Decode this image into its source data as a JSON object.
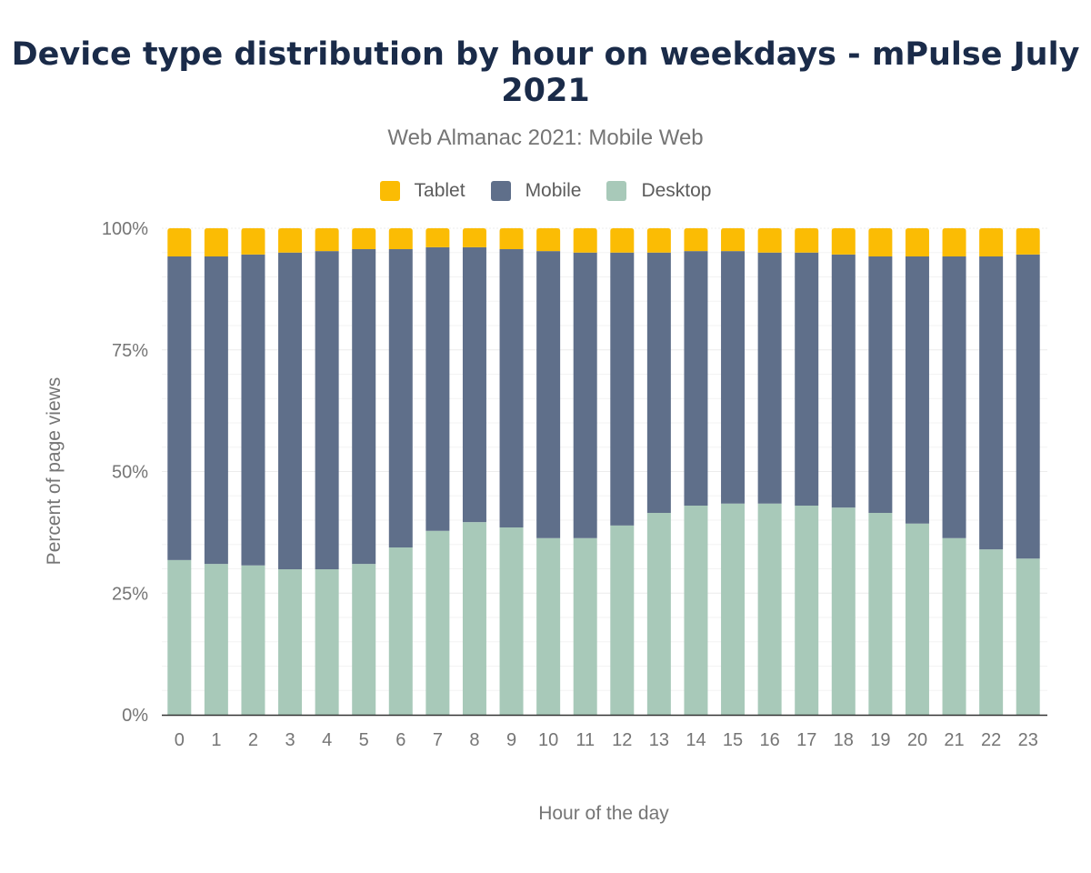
{
  "chart_data": {
    "type": "bar",
    "stacked": true,
    "title": "Device type distribution by hour on weekdays - mPulse July 2021",
    "subtitle": "Web Almanac 2021: Mobile Web",
    "xlabel": "Hour of the day",
    "ylabel": "Percent of page views",
    "ylim": [
      0,
      100
    ],
    "yticks": [
      "0%",
      "25%",
      "50%",
      "75%",
      "100%"
    ],
    "grid": true,
    "legend_position": "top",
    "categories": [
      "0",
      "1",
      "2",
      "3",
      "4",
      "5",
      "6",
      "7",
      "8",
      "9",
      "10",
      "11",
      "12",
      "13",
      "14",
      "15",
      "16",
      "17",
      "18",
      "19",
      "20",
      "21",
      "22",
      "23"
    ],
    "series": [
      {
        "name": "Desktop",
        "color": "#a8c9b9",
        "values": [
          31.8,
          31.0,
          30.7,
          29.9,
          29.9,
          31.0,
          34.4,
          37.8,
          39.6,
          38.5,
          36.3,
          36.3,
          38.9,
          41.5,
          43.0,
          43.4,
          43.4,
          43.0,
          42.6,
          41.5,
          39.3,
          36.3,
          34.0,
          32.1
        ]
      },
      {
        "name": "Mobile",
        "color": "#5f6f8a",
        "values": [
          62.4,
          63.2,
          63.9,
          65.1,
          65.4,
          64.7,
          61.3,
          58.3,
          56.5,
          57.2,
          59.0,
          58.7,
          56.1,
          53.5,
          52.3,
          51.9,
          51.6,
          52.0,
          52.0,
          52.7,
          54.9,
          57.9,
          60.2,
          62.5
        ]
      },
      {
        "name": "Tablet",
        "color": "#fbbc04",
        "values": [
          5.8,
          5.8,
          5.4,
          5.0,
          4.7,
          4.3,
          4.3,
          3.9,
          3.9,
          4.3,
          4.7,
          5.0,
          5.0,
          5.0,
          4.7,
          4.7,
          5.0,
          5.0,
          5.4,
          5.8,
          5.8,
          5.8,
          5.8,
          5.4
        ]
      }
    ],
    "legend_order": [
      "Tablet",
      "Mobile",
      "Desktop"
    ]
  }
}
